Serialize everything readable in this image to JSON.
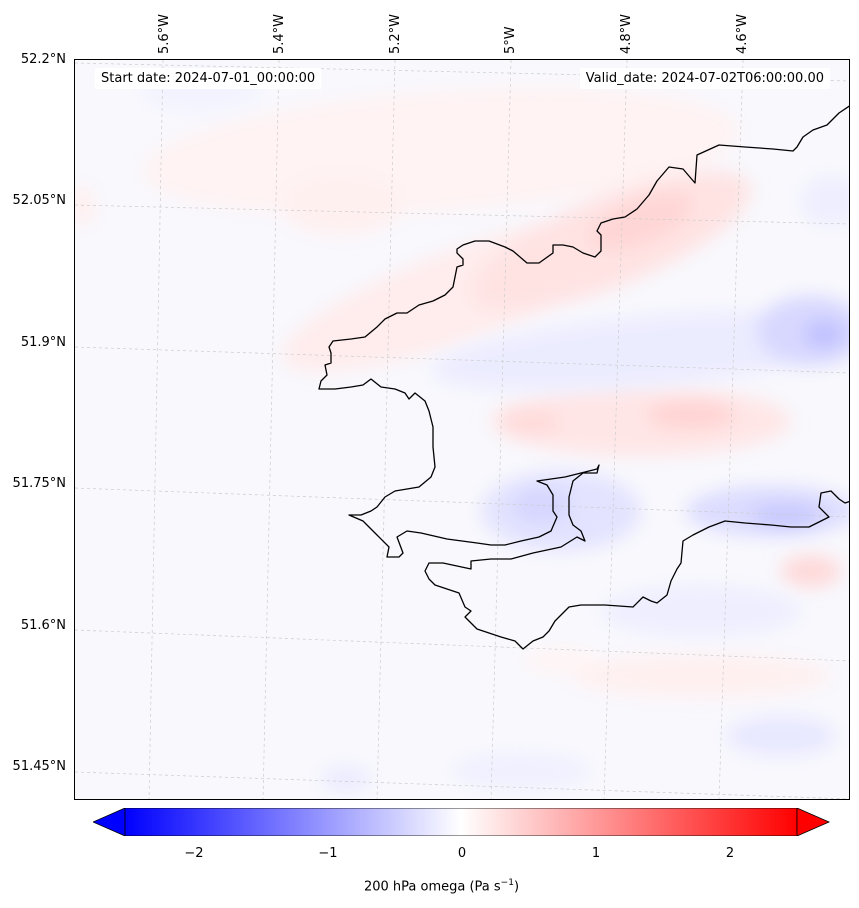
{
  "header": {
    "start_date": "Start date: 2024-07-01_00:00:00",
    "valid_date": "Valid_date: 2024-07-02T06:00:00.00"
  },
  "axes": {
    "lat_labels": [
      "52.2°N",
      "52.05°N",
      "51.9°N",
      "51.75°N",
      "51.6°N",
      "51.45°N"
    ],
    "lon_labels": [
      "5.6°W",
      "5.4°W",
      "5.2°W",
      "5°W",
      "4.8°W",
      "4.6°W"
    ]
  },
  "colorbar": {
    "ticks": [
      "−2",
      "−1",
      "0",
      "1",
      "2"
    ],
    "label_prefix": "200 hPa omega (Pa s",
    "label_exp": "−1",
    "label_suffix": ")",
    "colormap": "bwr",
    "vmin": -2.5,
    "vmax": 2.5,
    "extend": "both"
  },
  "colors": {
    "negative": "#0000ff",
    "zero": "#ffffff",
    "positive": "#ff0000",
    "coastline": "#000000",
    "gridline": "#c8c8c8"
  }
}
